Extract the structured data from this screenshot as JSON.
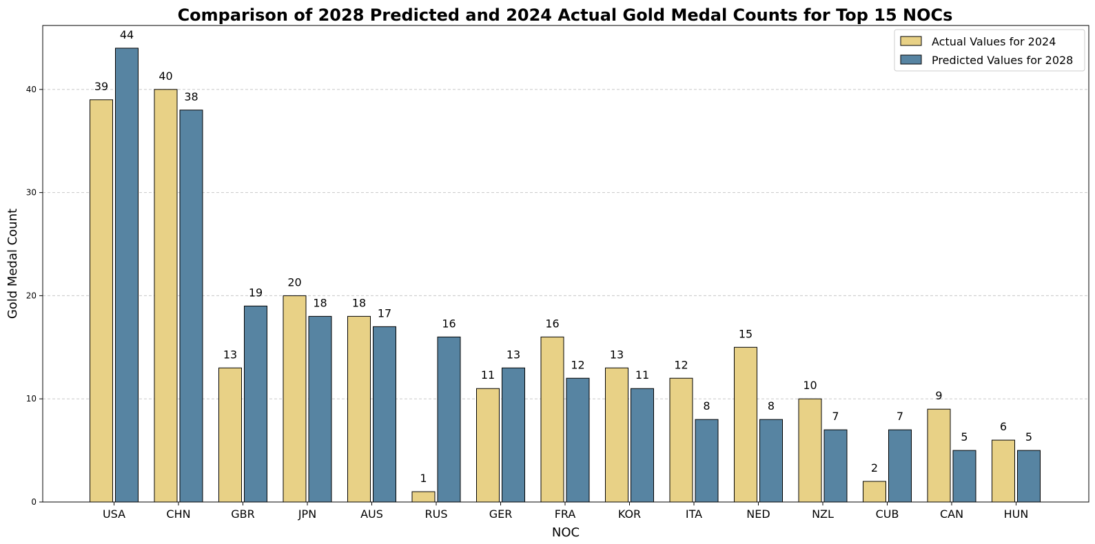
{
  "chart_data": {
    "type": "bar",
    "title": "Comparison of 2028 Predicted and 2024 Actual Gold Medal Counts for Top 15 NOCs",
    "xlabel": "NOC",
    "ylabel": "Gold Medal Count",
    "categories": [
      "USA",
      "CHN",
      "GBR",
      "JPN",
      "AUS",
      "RUS",
      "GER",
      "FRA",
      "KOR",
      "ITA",
      "NED",
      "NZL",
      "CUB",
      "CAN",
      "HUN"
    ],
    "series": [
      {
        "name": "Actual Values for 2024",
        "color": "#E8D186",
        "values": [
          39,
          40,
          13,
          20,
          18,
          1,
          11,
          16,
          13,
          12,
          15,
          10,
          2,
          9,
          6
        ]
      },
      {
        "name": "Predicted Values for 2028",
        "color": "#5784A2",
        "values": [
          44,
          38,
          19,
          18,
          17,
          16,
          13,
          12,
          11,
          8,
          8,
          7,
          7,
          5,
          5
        ]
      }
    ],
    "ylim": [
      0,
      46.2
    ],
    "yticks": [
      0,
      10,
      20,
      30,
      40
    ],
    "grid": "y-dashed",
    "legend_position": "top-right",
    "data_labels": true
  }
}
